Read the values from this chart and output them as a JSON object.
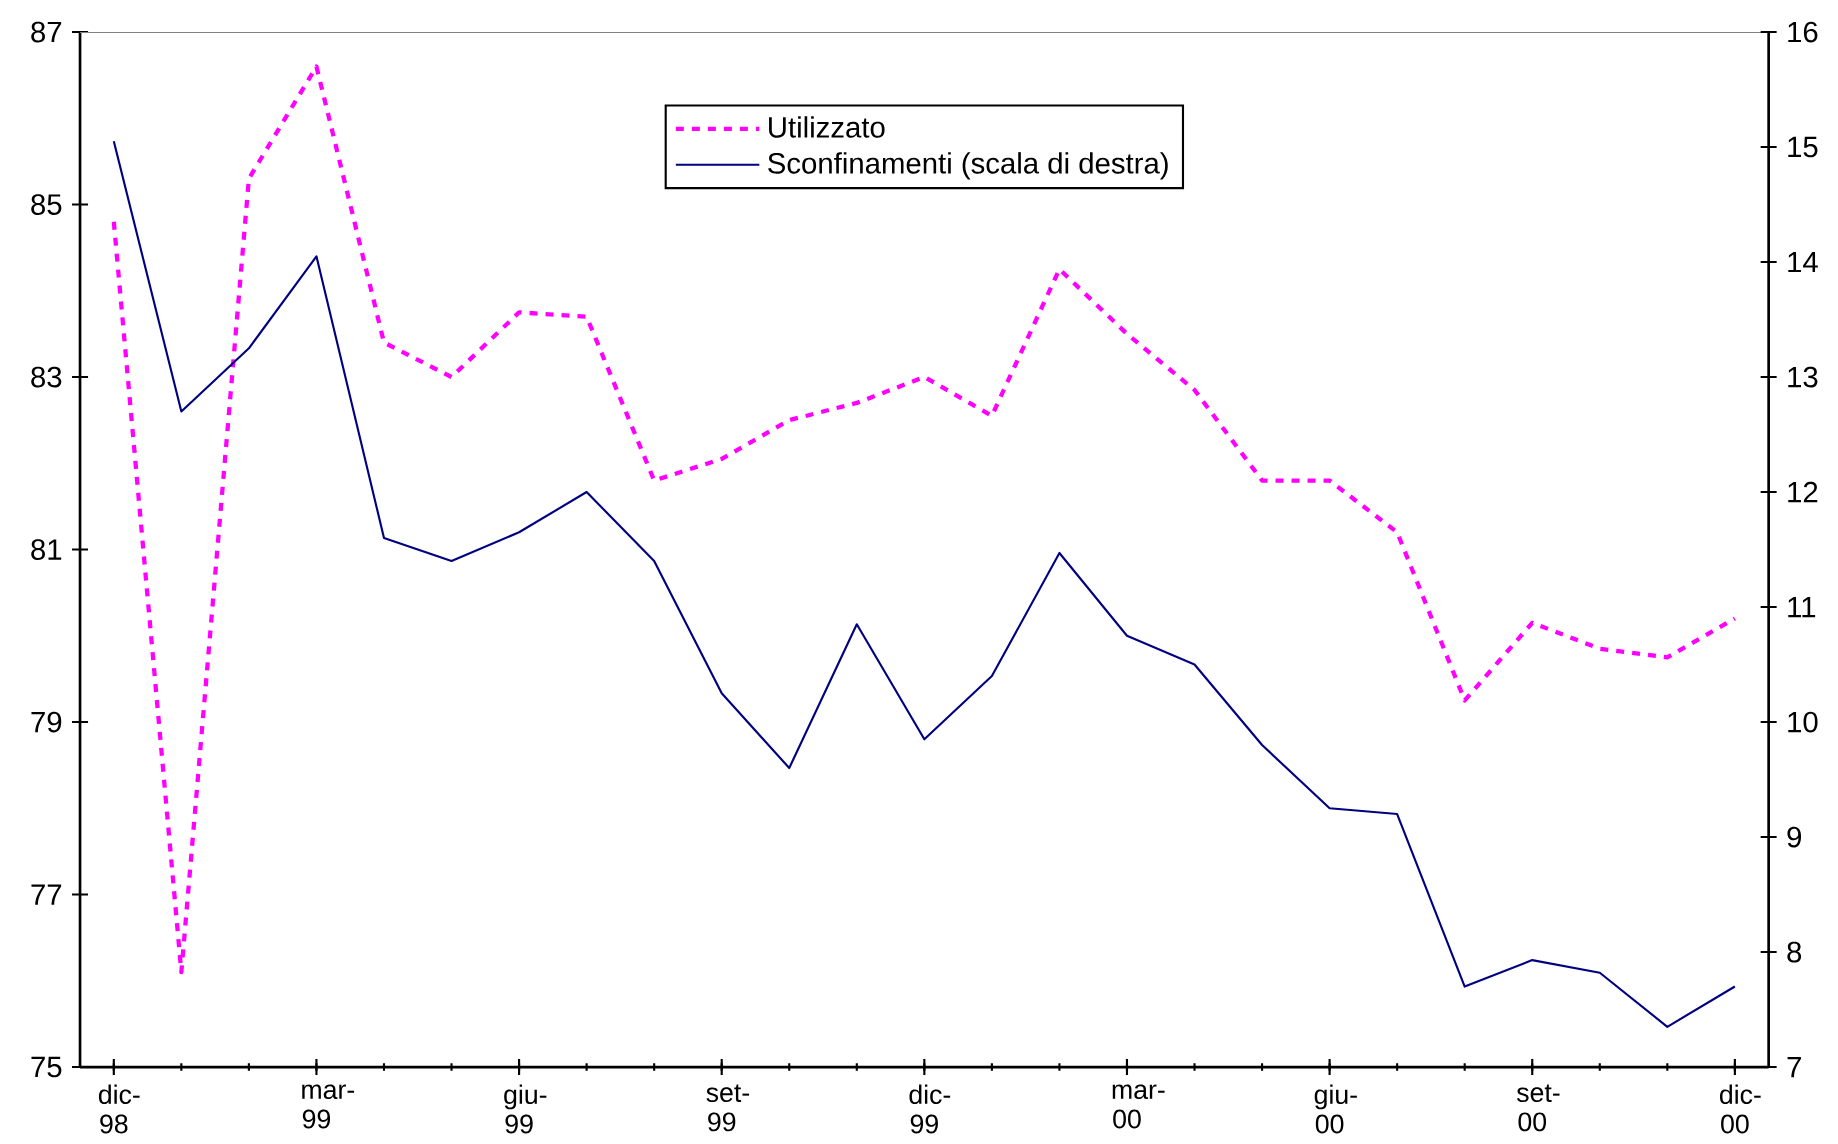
{
  "chart_data": {
    "type": "line",
    "categories": [
      "dic-98",
      null,
      null,
      "mar-99",
      null,
      null,
      "giu-99",
      null,
      null,
      "set-99",
      null,
      null,
      "dic-99",
      null,
      null,
      "mar-00",
      null,
      null,
      "giu-00",
      null,
      null,
      "set-00",
      null,
      null,
      "dic-00"
    ],
    "series": [
      {
        "name": "Utilizzato",
        "color": "#ff00ff",
        "line_style": "dashed",
        "values": [
          84.8,
          76.1,
          85.3,
          86.6,
          83.4,
          83.0,
          83.75,
          83.7,
          81.8,
          82.05,
          82.5,
          82.7,
          83.0,
          82.55,
          84.25,
          83.5,
          82.85,
          81.8,
          81.8,
          81.2,
          79.25,
          80.15,
          79.85,
          79.75,
          80.2
        ]
      },
      {
        "name": "Sconfinamenti (scala di destra)",
        "color": "#000080",
        "line_style": "solid",
        "axis": "y2",
        "values": [
          15.05,
          12.7,
          13.25,
          14.05,
          11.6,
          11.4,
          11.65,
          12.0,
          11.4,
          10.25,
          9.6,
          10.85,
          9.85,
          10.4,
          11.47,
          10.75,
          10.5,
          9.8,
          9.25,
          9.2,
          7.7,
          7.93,
          7.82,
          7.35,
          7.7
        ]
      }
    ],
    "ylim": [
      75,
      87
    ],
    "yticks": [
      75,
      77,
      79,
      81,
      83,
      85,
      87
    ],
    "y2lim": [
      7,
      16
    ],
    "y2ticks": [
      7,
      8,
      9,
      10,
      11,
      12,
      13,
      14,
      15,
      16
    ],
    "legend": "top",
    "marker": "none",
    "grid": false
  }
}
